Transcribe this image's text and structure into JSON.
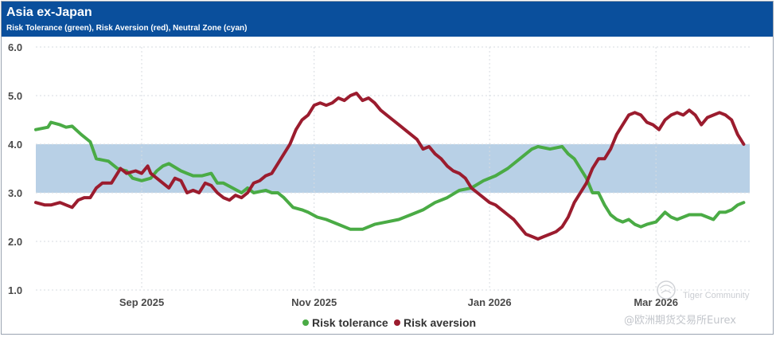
{
  "header": {
    "title": "Asia ex-Japan",
    "subtitle": "Risk Tolerance (green), Risk Aversion (red), Neutral Zone (cyan)"
  },
  "watermark": {
    "line1": "Tiger Community",
    "line2": "@欧洲期货交易所Eurex"
  },
  "chart_data": {
    "type": "line",
    "title": "Asia ex-Japan",
    "subtitle": "Risk Tolerance (green), Risk Aversion (red), Neutral Zone (cyan)",
    "xlabel": "",
    "ylabel": "",
    "x_domain": [
      0,
      236
    ],
    "ylim": [
      1.0,
      6.0
    ],
    "y_ticks": [
      1.0,
      2.0,
      3.0,
      4.0,
      5.0,
      6.0
    ],
    "y_tick_labels": [
      "1.0",
      "2.0",
      "3.0",
      "4.0",
      "5.0",
      "6.0"
    ],
    "x_ticks": [
      {
        "x": 35,
        "label": "Sep 2025"
      },
      {
        "x": 92,
        "label": "Nov 2025"
      },
      {
        "x": 150,
        "label": "Jan 2026"
      },
      {
        "x": 205,
        "label": "Mar 2026"
      }
    ],
    "grid": true,
    "neutral_zone": {
      "y0": 3.0,
      "y1": 4.0,
      "color": "#b8d0e6"
    },
    "legend_position": "bottom-center",
    "series": [
      {
        "name": "Risk tolerance",
        "color": "#4aab45",
        "points": [
          [
            0,
            4.3
          ],
          [
            4,
            4.35
          ],
          [
            5,
            4.45
          ],
          [
            8,
            4.4
          ],
          [
            10,
            4.35
          ],
          [
            12,
            4.37
          ],
          [
            15,
            4.2
          ],
          [
            18,
            4.05
          ],
          [
            20,
            3.7
          ],
          [
            24,
            3.65
          ],
          [
            27,
            3.5
          ],
          [
            30,
            3.45
          ],
          [
            32,
            3.3
          ],
          [
            35,
            3.25
          ],
          [
            38,
            3.3
          ],
          [
            40,
            3.45
          ],
          [
            42,
            3.55
          ],
          [
            44,
            3.6
          ],
          [
            48,
            3.45
          ],
          [
            50,
            3.4
          ],
          [
            52,
            3.35
          ],
          [
            55,
            3.35
          ],
          [
            58,
            3.4
          ],
          [
            60,
            3.2
          ],
          [
            62,
            3.2
          ],
          [
            65,
            3.1
          ],
          [
            68,
            3.0
          ],
          [
            70,
            3.1
          ],
          [
            72,
            3.0
          ],
          [
            76,
            3.05
          ],
          [
            78,
            3.0
          ],
          [
            80,
            3.0
          ],
          [
            82,
            2.9
          ],
          [
            85,
            2.7
          ],
          [
            88,
            2.65
          ],
          [
            90,
            2.6
          ],
          [
            93,
            2.5
          ],
          [
            96,
            2.45
          ],
          [
            100,
            2.35
          ],
          [
            104,
            2.25
          ],
          [
            108,
            2.25
          ],
          [
            112,
            2.35
          ],
          [
            116,
            2.4
          ],
          [
            120,
            2.45
          ],
          [
            124,
            2.55
          ],
          [
            128,
            2.65
          ],
          [
            132,
            2.8
          ],
          [
            136,
            2.9
          ],
          [
            140,
            3.05
          ],
          [
            144,
            3.1
          ],
          [
            148,
            3.25
          ],
          [
            152,
            3.35
          ],
          [
            156,
            3.5
          ],
          [
            160,
            3.7
          ],
          [
            164,
            3.9
          ],
          [
            166,
            3.95
          ],
          [
            170,
            3.9
          ],
          [
            174,
            3.95
          ],
          [
            176,
            3.8
          ],
          [
            178,
            3.7
          ],
          [
            180,
            3.5
          ],
          [
            182,
            3.3
          ],
          [
            184,
            3.0
          ],
          [
            186,
            3.0
          ],
          [
            188,
            2.75
          ],
          [
            190,
            2.55
          ],
          [
            192,
            2.45
          ],
          [
            194,
            2.4
          ],
          [
            196,
            2.45
          ],
          [
            198,
            2.35
          ],
          [
            200,
            2.3
          ],
          [
            202,
            2.35
          ],
          [
            205,
            2.4
          ],
          [
            208,
            2.6
          ],
          [
            210,
            2.5
          ],
          [
            212,
            2.45
          ],
          [
            214,
            2.5
          ],
          [
            216,
            2.55
          ],
          [
            220,
            2.55
          ],
          [
            222,
            2.5
          ],
          [
            224,
            2.45
          ],
          [
            226,
            2.6
          ],
          [
            228,
            2.6
          ],
          [
            230,
            2.65
          ],
          [
            232,
            2.75
          ],
          [
            234,
            2.8
          ]
        ]
      },
      {
        "name": "Risk aversion",
        "color": "#9b1c2e",
        "points": [
          [
            0,
            2.8
          ],
          [
            3,
            2.75
          ],
          [
            5,
            2.75
          ],
          [
            8,
            2.8
          ],
          [
            10,
            2.75
          ],
          [
            12,
            2.7
          ],
          [
            14,
            2.85
          ],
          [
            16,
            2.9
          ],
          [
            18,
            2.9
          ],
          [
            20,
            3.1
          ],
          [
            22,
            3.2
          ],
          [
            25,
            3.2
          ],
          [
            27,
            3.4
          ],
          [
            28,
            3.5
          ],
          [
            30,
            3.4
          ],
          [
            33,
            3.45
          ],
          [
            35,
            3.4
          ],
          [
            37,
            3.55
          ],
          [
            38,
            3.4
          ],
          [
            40,
            3.3
          ],
          [
            42,
            3.2
          ],
          [
            44,
            3.1
          ],
          [
            46,
            3.3
          ],
          [
            48,
            3.25
          ],
          [
            50,
            3.0
          ],
          [
            52,
            3.05
          ],
          [
            54,
            3.0
          ],
          [
            56,
            3.2
          ],
          [
            58,
            3.15
          ],
          [
            60,
            3.0
          ],
          [
            62,
            2.9
          ],
          [
            64,
            2.85
          ],
          [
            66,
            2.95
          ],
          [
            68,
            2.9
          ],
          [
            70,
            3.0
          ],
          [
            72,
            3.2
          ],
          [
            74,
            3.25
          ],
          [
            76,
            3.35
          ],
          [
            78,
            3.4
          ],
          [
            80,
            3.6
          ],
          [
            82,
            3.8
          ],
          [
            84,
            4.0
          ],
          [
            86,
            4.3
          ],
          [
            88,
            4.5
          ],
          [
            90,
            4.6
          ],
          [
            92,
            4.8
          ],
          [
            94,
            4.85
          ],
          [
            96,
            4.8
          ],
          [
            98,
            4.85
          ],
          [
            100,
            4.95
          ],
          [
            102,
            4.9
          ],
          [
            104,
            5.0
          ],
          [
            106,
            5.05
          ],
          [
            108,
            4.9
          ],
          [
            110,
            4.95
          ],
          [
            112,
            4.85
          ],
          [
            114,
            4.7
          ],
          [
            116,
            4.6
          ],
          [
            118,
            4.5
          ],
          [
            120,
            4.4
          ],
          [
            122,
            4.3
          ],
          [
            124,
            4.2
          ],
          [
            126,
            4.1
          ],
          [
            128,
            3.9
          ],
          [
            130,
            3.95
          ],
          [
            132,
            3.8
          ],
          [
            134,
            3.7
          ],
          [
            136,
            3.55
          ],
          [
            138,
            3.45
          ],
          [
            140,
            3.4
          ],
          [
            142,
            3.3
          ],
          [
            144,
            3.1
          ],
          [
            146,
            3.0
          ],
          [
            148,
            2.9
          ],
          [
            150,
            2.8
          ],
          [
            152,
            2.75
          ],
          [
            154,
            2.65
          ],
          [
            156,
            2.55
          ],
          [
            158,
            2.45
          ],
          [
            160,
            2.3
          ],
          [
            162,
            2.15
          ],
          [
            164,
            2.1
          ],
          [
            166,
            2.05
          ],
          [
            168,
            2.1
          ],
          [
            170,
            2.15
          ],
          [
            172,
            2.2
          ],
          [
            174,
            2.3
          ],
          [
            176,
            2.5
          ],
          [
            178,
            2.8
          ],
          [
            180,
            3.0
          ],
          [
            182,
            3.2
          ],
          [
            184,
            3.5
          ],
          [
            186,
            3.7
          ],
          [
            188,
            3.7
          ],
          [
            190,
            3.9
          ],
          [
            192,
            4.2
          ],
          [
            194,
            4.4
          ],
          [
            196,
            4.6
          ],
          [
            198,
            4.65
          ],
          [
            200,
            4.6
          ],
          [
            202,
            4.45
          ],
          [
            204,
            4.4
          ],
          [
            206,
            4.3
          ],
          [
            208,
            4.5
          ],
          [
            210,
            4.6
          ],
          [
            212,
            4.65
          ],
          [
            214,
            4.6
          ],
          [
            216,
            4.7
          ],
          [
            218,
            4.6
          ],
          [
            220,
            4.4
          ],
          [
            222,
            4.55
          ],
          [
            224,
            4.6
          ],
          [
            226,
            4.65
          ],
          [
            228,
            4.6
          ],
          [
            230,
            4.5
          ],
          [
            232,
            4.2
          ],
          [
            234,
            4.0
          ]
        ]
      }
    ]
  }
}
